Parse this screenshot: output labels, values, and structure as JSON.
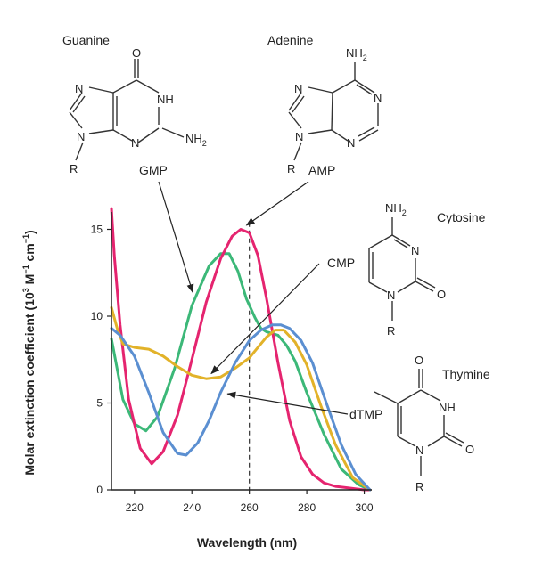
{
  "chart_data": {
    "type": "line",
    "xlabel": "Wavelength (nm)",
    "ylabel_main": "Molar extinction coefficient (10",
    "ylabel_sup1": "3",
    "ylabel_mid": " M",
    "ylabel_sup2": "−1",
    "ylabel_mid2": " cm",
    "ylabel_sup3": "−1",
    "ylabel_end": ")",
    "xlim": [
      212,
      302
    ],
    "ylim": [
      0,
      16
    ],
    "x_ticks": [
      220,
      240,
      260,
      280,
      300
    ],
    "y_ticks": [
      0,
      5,
      10,
      15
    ],
    "reference_line_x": 260,
    "series": [
      {
        "name": "GMP",
        "color": "#3cb878",
        "x": [
          212,
          216,
          220,
          224,
          228,
          234,
          240,
          246,
          250,
          253,
          256,
          259,
          262,
          264,
          266,
          268,
          270,
          273,
          276,
          280,
          286,
          292,
          298,
          302
        ],
        "y": [
          8.7,
          5.2,
          3.8,
          3.4,
          4.2,
          7.0,
          10.6,
          12.9,
          13.6,
          13.6,
          12.6,
          11.0,
          9.9,
          9.3,
          9.1,
          9.0,
          8.9,
          8.3,
          7.4,
          5.6,
          3.2,
          1.2,
          0.3,
          0.0
        ]
      },
      {
        "name": "AMP",
        "color": "#e5246f",
        "x": [
          212,
          213,
          215,
          218,
          222,
          226,
          230,
          235,
          240,
          245,
          250,
          254,
          257,
          260,
          263,
          266,
          270,
          274,
          278,
          282,
          286,
          290,
          295,
          300,
          302
        ],
        "y": [
          16.2,
          13.5,
          9.5,
          5.2,
          2.4,
          1.5,
          2.2,
          4.3,
          7.5,
          10.8,
          13.3,
          14.6,
          15.0,
          14.8,
          13.5,
          11.0,
          7.3,
          4.0,
          1.9,
          0.9,
          0.4,
          0.2,
          0.1,
          0.0,
          0.0
        ]
      },
      {
        "name": "CMP",
        "color": "#e2b229",
        "x": [
          212,
          214,
          216,
          220,
          225,
          230,
          235,
          240,
          245,
          250,
          255,
          260,
          263,
          266,
          269,
          272,
          276,
          280,
          285,
          290,
          296,
          302
        ],
        "y": [
          10.5,
          9.3,
          8.4,
          8.2,
          8.1,
          7.7,
          7.1,
          6.6,
          6.4,
          6.5,
          7.0,
          7.6,
          8.2,
          8.8,
          9.2,
          9.2,
          8.5,
          7.2,
          4.8,
          2.6,
          0.7,
          0.0
        ]
      },
      {
        "name": "dTMP",
        "color": "#5b8fd1",
        "x": [
          212,
          215,
          220,
          225,
          230,
          235,
          238,
          242,
          246,
          250,
          255,
          260,
          264,
          268,
          271,
          274,
          278,
          282,
          287,
          292,
          297,
          302
        ],
        "y": [
          9.3,
          8.9,
          7.7,
          5.6,
          3.3,
          2.1,
          2.0,
          2.7,
          4.0,
          5.6,
          7.3,
          8.6,
          9.2,
          9.5,
          9.5,
          9.3,
          8.6,
          7.3,
          4.9,
          2.6,
          0.9,
          0.0
        ]
      }
    ],
    "annotations": [
      {
        "label": "GMP",
        "target_series": "GMP"
      },
      {
        "label": "AMP",
        "target_series": "AMP"
      },
      {
        "label": "CMP",
        "target_series": "CMP"
      },
      {
        "label": "dTMP",
        "target_series": "dTMP"
      }
    ]
  },
  "molecules": {
    "guanine": {
      "name": "Guanine",
      "atoms": {
        "o": "O",
        "n7": "N",
        "n1h": "NH",
        "n9": "N",
        "n3": "N",
        "nh2": "NH",
        "nh2_sub": "2",
        "r": "R"
      }
    },
    "adenine": {
      "name": "Adenine",
      "atoms": {
        "nh2": "NH",
        "nh2_sub": "2",
        "n7": "N",
        "n1": "N",
        "n9": "N",
        "n3": "N",
        "r": "R"
      }
    },
    "cytosine": {
      "name": "Cytosine",
      "atoms": {
        "nh2": "NH",
        "nh2_sub": "2",
        "n3": "N",
        "n1": "N",
        "o": "O",
        "r": "R"
      }
    },
    "thymine": {
      "name": "Thymine",
      "atoms": {
        "o4": "O",
        "n3h": "NH",
        "n1": "N",
        "o2": "O",
        "r": "R"
      }
    }
  }
}
